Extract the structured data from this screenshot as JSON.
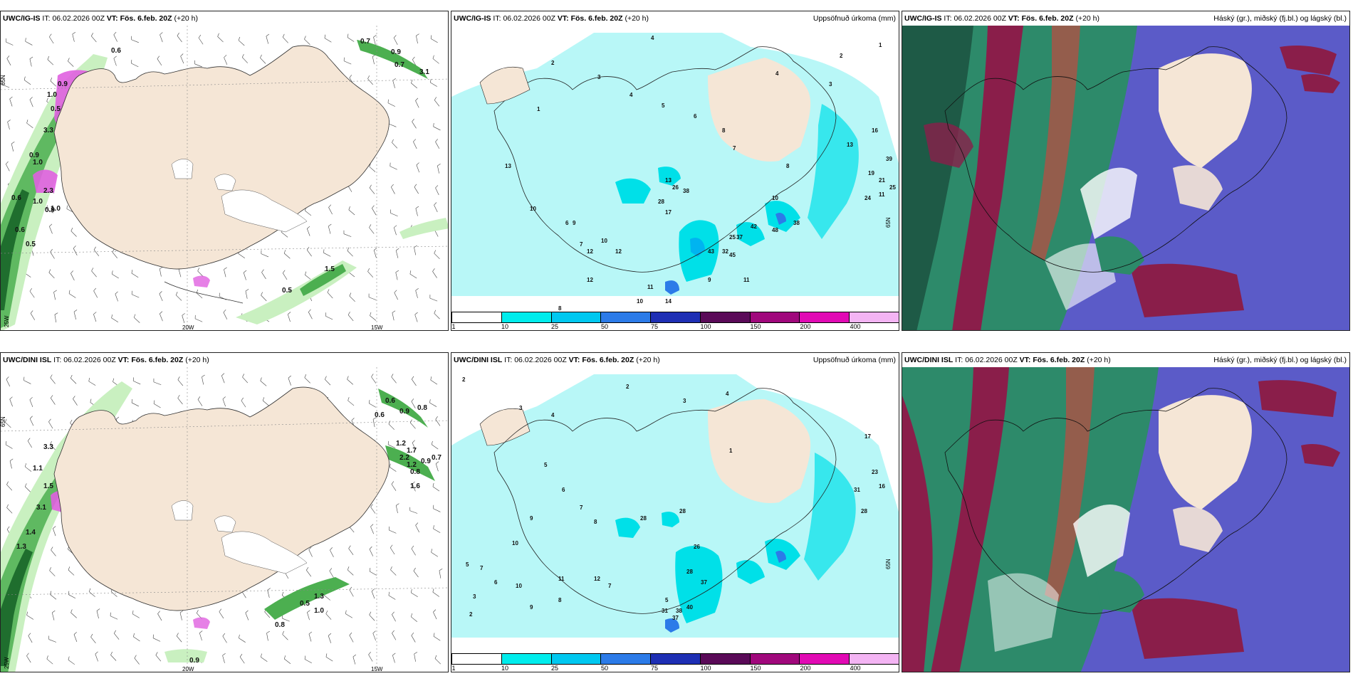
{
  "panels": [
    {
      "id": "p1",
      "model": "UWC/IG-IS",
      "init_label": "IT:",
      "init": "06.02.2026 00Z",
      "valid_label": "VT:",
      "valid": "Fös. 6.feb. 20Z",
      "lead": "(+20 h)",
      "product": "",
      "lat_label": "65N",
      "lon_labels": [
        "20W",
        "15W"
      ],
      "lat_left": "25W",
      "numbers": [
        "0.6",
        "0.7",
        "0.9",
        "0.7",
        "3.1",
        "0.9",
        "1.0",
        "0.5",
        "3.3",
        "0.9",
        "1.0",
        "2.3",
        "1.0",
        "0.6",
        "1.0",
        "0.9",
        "0.6",
        "0.5",
        "1.5",
        "0.5"
      ]
    },
    {
      "id": "p2",
      "model": "UWC/IG-IS",
      "init_label": "IT:",
      "init": "06.02.2026 00Z",
      "valid_label": "VT:",
      "valid": "Fös. 6.feb. 20Z",
      "lead": "(+20 h)",
      "product": "Uppsöfnuð úrkoma (mm)",
      "lat_label": "65N",
      "numbers": [
        "4",
        "3",
        "2",
        "1",
        "4",
        "5",
        "6",
        "8",
        "7",
        "13",
        "10",
        "28",
        "26",
        "17",
        "13",
        "38",
        "25",
        "32",
        "45",
        "43",
        "37",
        "42",
        "48",
        "38",
        "13",
        "16",
        "39",
        "21",
        "24",
        "11",
        "19",
        "25",
        "4",
        "3",
        "2",
        "1",
        "8",
        "10",
        "11",
        "9",
        "14",
        "12",
        "12",
        "10",
        "9",
        "7",
        "6",
        "8",
        "12",
        "11",
        "10"
      ]
    },
    {
      "id": "p3",
      "model": "UWC/IG-IS",
      "init_label": "IT:",
      "init": "06.02.2026 00Z",
      "valid_label": "VT:",
      "valid": "Fös. 6.feb. 20Z",
      "lead": "(+20 h)",
      "product": "Háský (gr.), miðský (fj.bl.) og lágský (bl.)"
    },
    {
      "id": "p4",
      "model": "UWC/DINI ISL",
      "init_label": "IT:",
      "init": "06.02.2026 00Z",
      "valid_label": "VT:",
      "valid": "Fös. 6.feb. 20Z",
      "lead": "(+20 h)",
      "product": "",
      "lat_label": "65N",
      "lon_labels": [
        "20W",
        "15W"
      ],
      "lat_left": "25W",
      "numbers": [
        "0.6",
        "0.9",
        "0.8",
        "0.6",
        "1.2",
        "1.7",
        "0.9",
        "0.7",
        "1.2",
        "0.8",
        "1.6",
        "3.3",
        "1.1",
        "1.5",
        "3.1",
        "1.4",
        "1.3",
        "0.5",
        "1.3",
        "1.0",
        "0.8",
        "0.9",
        "2.2"
      ]
    },
    {
      "id": "p5",
      "model": "UWC/DINI ISL",
      "init_label": "IT:",
      "init": "06.02.2026 00Z",
      "valid_label": "VT:",
      "valid": "Fös. 6.feb. 20Z",
      "lead": "(+20 h)",
      "product": "Uppsöfnuð úrkoma (mm)",
      "lat_label": "65N",
      "numbers": [
        "2",
        "3",
        "4",
        "5",
        "6",
        "7",
        "8",
        "9",
        "10",
        "11",
        "12",
        "28",
        "28",
        "26",
        "28",
        "37",
        "38",
        "40",
        "31",
        "37",
        "23",
        "16",
        "17",
        "31",
        "28",
        "4",
        "3",
        "2",
        "1",
        "5",
        "7",
        "8",
        "9",
        "10",
        "6",
        "7",
        "5",
        "3",
        "2"
      ]
    },
    {
      "id": "p6",
      "model": "UWC/DINI ISL",
      "init_label": "IT:",
      "init": "06.02.2026 00Z",
      "valid_label": "VT:",
      "valid": "Fös. 6.feb. 20Z",
      "lead": "(+20 h)",
      "product": "Háský (gr.), miðský (fj.bl.) og lágský (bl.)"
    }
  ],
  "colorbar": {
    "labels": [
      "1",
      "10",
      "25",
      "50",
      "75",
      "100",
      "150",
      "200",
      "400"
    ],
    "colors": [
      "#ffffff",
      "#00ecec",
      "#00c8f0",
      "#2c7be8",
      "#1e2fb4",
      "#5a0a58",
      "#a0087c",
      "#e10ab4",
      "#f3b4f3"
    ]
  },
  "colors": {
    "land": "#f5e6d6",
    "ice": "#ffffff",
    "sea_precip": "#b8f7f7",
    "green_light": "#c9f0c0",
    "green_dark": "#1f8c3a",
    "magenta": "#e060e0",
    "cloud_blue": "#5b5bc8",
    "cloud_green": "#2d8a6a",
    "cloud_red": "#8a1e4a",
    "cloud_darkgreen": "#1e5a46"
  }
}
